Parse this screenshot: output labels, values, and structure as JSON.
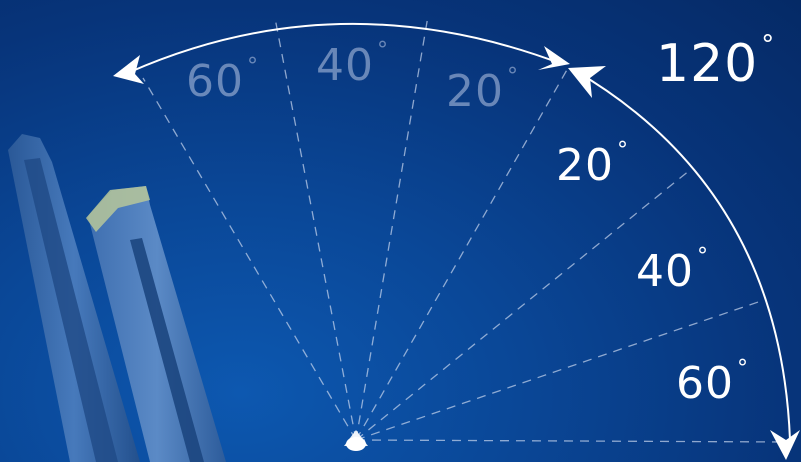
{
  "labels": {
    "total": "120",
    "left_60": "60",
    "left_40": "40",
    "left_20": "20",
    "right_20": "20",
    "right_40": "40",
    "right_60": "60",
    "degree_symbol": "°"
  },
  "colors": {
    "background": "#0a4797",
    "arc": "#ffffff",
    "guide_lines": "#c8d6ee",
    "faded_text": "#b9c8e6",
    "instrument": "#3c6aa8"
  }
}
